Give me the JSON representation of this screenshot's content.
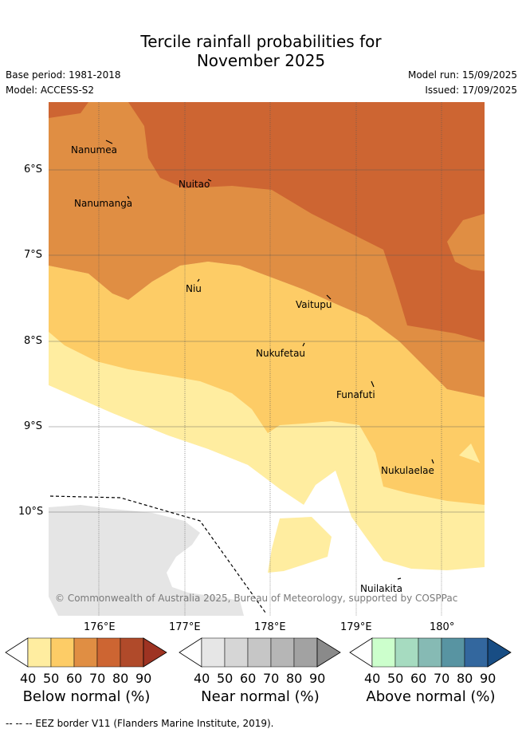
{
  "title": {
    "line1": "Tercile rainfall probabilities for",
    "line2": "November 2025"
  },
  "meta": {
    "base_period": "Base period: 1981-2018",
    "model": "Model: ACCESS-S2",
    "model_run": "Model run: 15/09/2025",
    "issued": "Issued: 17/09/2025"
  },
  "map": {
    "lat_labels": [
      "6°S",
      "7°S",
      "8°S",
      "9°S",
      "10°S"
    ],
    "lon_labels": [
      "176°E",
      "177°E",
      "178°E",
      "179°E",
      "180°"
    ],
    "places": [
      "Nanumea",
      "Nanumanga",
      "Nuitao",
      "Niu",
      "Vaitupu",
      "Nukufetau",
      "Funafuti",
      "Nukulaelae",
      "Nuilakita"
    ],
    "copyright": "© Commonwealth of Australia 2025, Bureau of Meteorology, supported by COSPPac",
    "zone_colors": {
      "below_40_50": "#ffeda0",
      "below_50_60": "#fdcc66",
      "below_60_70": "#e08e43",
      "below_70_80": "#cd6532",
      "near_normal_land": "#e5e5e5"
    }
  },
  "colorbars": [
    {
      "title": "Below normal (%)",
      "ticks": [
        "40",
        "50",
        "60",
        "70",
        "80",
        "90"
      ],
      "colors": [
        "#ffeda0",
        "#fdcc66",
        "#e08e43",
        "#cd6532",
        "#b04a2a"
      ],
      "extend_color": "#9e3322"
    },
    {
      "title": "Near normal (%)",
      "ticks": [
        "40",
        "50",
        "60",
        "70",
        "80",
        "90"
      ],
      "colors": [
        "#e6e6e6",
        "#d6d6d6",
        "#c6c6c6",
        "#b6b6b6",
        "#a2a2a2"
      ],
      "extend_color": "#8a8a8a"
    },
    {
      "title": "Above normal (%)",
      "ticks": [
        "40",
        "50",
        "60",
        "70",
        "80",
        "90"
      ],
      "colors": [
        "#ccffcc",
        "#a6dbc0",
        "#86bab4",
        "#5894a2",
        "#33679e"
      ],
      "extend_color": "#184d84"
    }
  ],
  "footer": "-- -- -- EEZ border V11 (Flanders Marine Institute, 2019)."
}
